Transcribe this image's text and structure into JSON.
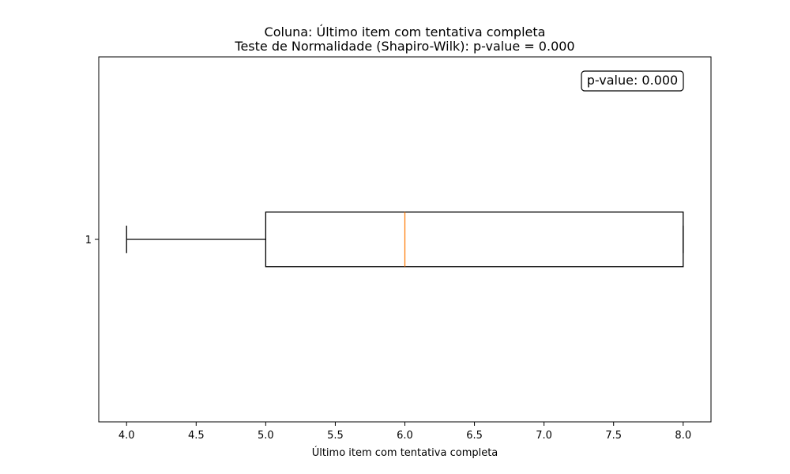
{
  "chart_data": {
    "type": "boxplot",
    "title": "Coluna: Último item com tentativa completa",
    "subtitle": "Teste de Normalidade (Shapiro-Wilk): p-value = 0.000",
    "xlabel": "Último item com tentativa completa",
    "ylabel": "",
    "orientation": "horizontal",
    "xlim": [
      3.8,
      8.2
    ],
    "x_ticks": [
      4.0,
      4.5,
      5.0,
      5.5,
      6.0,
      6.5,
      7.0,
      7.5,
      8.0
    ],
    "x_tick_labels": [
      "4.0",
      "4.5",
      "5.0",
      "5.5",
      "6.0",
      "6.5",
      "7.0",
      "7.5",
      "8.0"
    ],
    "y_tick_labels": [
      "1"
    ],
    "boxes": [
      {
        "position": 1,
        "whisker_low": 4.0,
        "q1": 5.0,
        "median": 6.0,
        "q3": 8.0,
        "whisker_high": 8.0
      }
    ],
    "annotation": "p-value: 0.000",
    "annotation_position": "top-right",
    "colors": {
      "box": "#000000",
      "median": "#ff7f0e",
      "axes": "#000000",
      "background": "#ffffff"
    },
    "grid": false,
    "legend": false
  }
}
